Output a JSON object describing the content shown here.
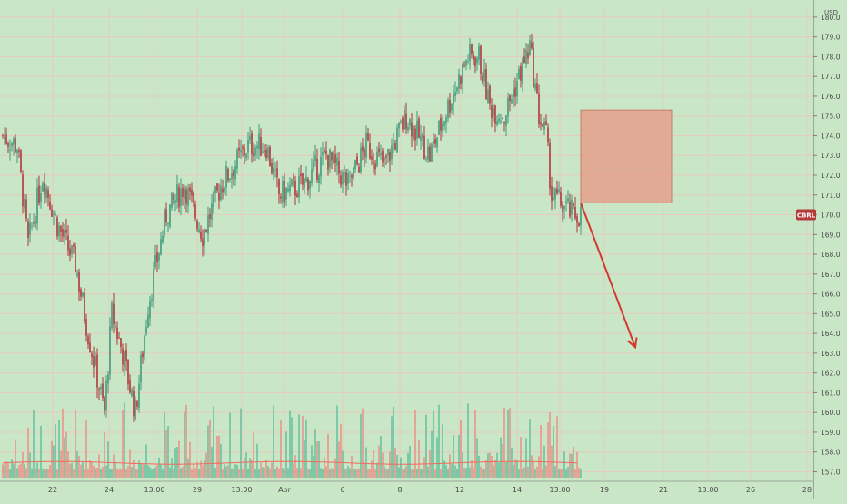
{
  "chart_data": {
    "type": "candlestick",
    "currency": "USD",
    "symbol_badge": "CBRL",
    "last_price": 170.0,
    "y_ticks": [
      180.0,
      179.0,
      178.0,
      177.0,
      176.0,
      175.0,
      174.0,
      173.0,
      172.0,
      171.0,
      170.0,
      169.0,
      168.0,
      167.0,
      166.0,
      165.0,
      164.0,
      163.0,
      162.0,
      161.0,
      160.0,
      159.0,
      158.0,
      157.0
    ],
    "x_ticks": [
      "22",
      "24",
      "13:00",
      "29",
      "13:00",
      "Apr",
      "6",
      "8",
      "12",
      "14",
      "13:00",
      "19",
      "21",
      "13:00",
      "26",
      "28"
    ],
    "ylim": [
      156.7,
      180.5
    ],
    "grid": true,
    "colors": {
      "background": "#c9e6c6",
      "grid": "#e8c9c0",
      "up": "#3f9a7c",
      "down": "#b0353a",
      "up_volume": "#5bbf9a",
      "down_volume": "#ec8a80",
      "volume_ma": "#ef6b61",
      "box_fill": "#e3a08c",
      "arrow": "#d23a31",
      "axis_text": "#4a4a4a",
      "badge": "#b33a3a"
    },
    "price_anchors": [
      {
        "i": 0,
        "p": 174.0
      },
      {
        "i": 8,
        "p": 173.5
      },
      {
        "i": 14,
        "p": 168.5
      },
      {
        "i": 22,
        "p": 172.0
      },
      {
        "i": 30,
        "p": 169.5
      },
      {
        "i": 40,
        "p": 167.5
      },
      {
        "i": 47,
        "p": 164.0
      },
      {
        "i": 56,
        "p": 160.0
      },
      {
        "i": 60,
        "p": 165.0
      },
      {
        "i": 66,
        "p": 163.0
      },
      {
        "i": 73,
        "p": 160.0
      },
      {
        "i": 80,
        "p": 165.5
      },
      {
        "i": 90,
        "p": 170.0
      },
      {
        "i": 100,
        "p": 171.5
      },
      {
        "i": 110,
        "p": 169.0
      },
      {
        "i": 120,
        "p": 171.5
      },
      {
        "i": 135,
        "p": 173.5
      },
      {
        "i": 145,
        "p": 173.5
      },
      {
        "i": 152,
        "p": 171.0
      },
      {
        "i": 165,
        "p": 171.5
      },
      {
        "i": 178,
        "p": 173.0
      },
      {
        "i": 190,
        "p": 171.5
      },
      {
        "i": 200,
        "p": 173.5
      },
      {
        "i": 210,
        "p": 172.5
      },
      {
        "i": 222,
        "p": 175.0
      },
      {
        "i": 235,
        "p": 173.0
      },
      {
        "i": 245,
        "p": 175.5
      },
      {
        "i": 256,
        "p": 178.0
      },
      {
        "i": 262,
        "p": 178.0
      },
      {
        "i": 268,
        "p": 175.5
      },
      {
        "i": 276,
        "p": 175.0
      },
      {
        "i": 282,
        "p": 176.5
      },
      {
        "i": 290,
        "p": 178.5
      },
      {
        "i": 295,
        "p": 175.0
      },
      {
        "i": 299,
        "p": 174.0
      },
      {
        "i": 302,
        "p": 171.0
      },
      {
        "i": 308,
        "p": 170.5
      },
      {
        "i": 314,
        "p": 170.0
      },
      {
        "i": 318,
        "p": 170.0
      }
    ],
    "price_box": {
      "x_start_index": 318,
      "x_end_index": 368,
      "y_top": 175.3,
      "y_bottom": 170.6
    },
    "projection": {
      "from_index": 318,
      "from_price": 170.6,
      "to_index": 348,
      "to_price": 163.3
    }
  }
}
